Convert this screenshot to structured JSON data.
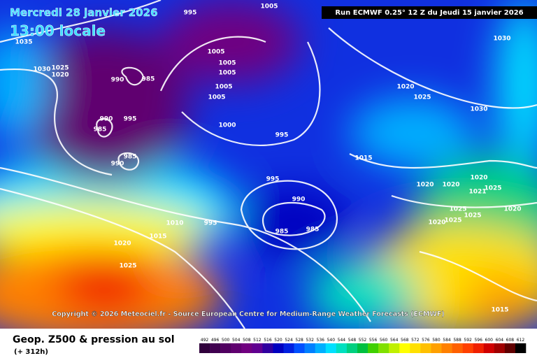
{
  "header": {
    "date": "Mercredi 28 janvier 2026",
    "time": "13:00 locale",
    "run": "Run ECMWF 0.25° 12 Z du Jeudi 15 janvier 2026"
  },
  "copyright": "Copyright © 2026 Meteociel.fr - Source European Centre for Medium-Range Weather Forecasts (ECMWF)",
  "legend": {
    "title": "Geop. Z500 & pression au sol",
    "subtitle": "(+ 312h)",
    "ticks": [
      492,
      496,
      500,
      504,
      508,
      512,
      516,
      520,
      524,
      528,
      532,
      536,
      540,
      544,
      548,
      552,
      556,
      560,
      564,
      568,
      572,
      576,
      580,
      584,
      588,
      592,
      596,
      600,
      604,
      608,
      612
    ],
    "colors": [
      "#30003c",
      "#400050",
      "#500060",
      "#600070",
      "#700080",
      "#600090",
      "#3000a0",
      "#0000c0",
      "#0020e0",
      "#0050ff",
      "#0080ff",
      "#00b0ff",
      "#00e0ff",
      "#00e0c0",
      "#00d080",
      "#00c040",
      "#40d000",
      "#80e000",
      "#c0f000",
      "#ffff00",
      "#ffe000",
      "#ffc000",
      "#ffa000",
      "#ff8000",
      "#ff6000",
      "#ff4000",
      "#f02000",
      "#d00000",
      "#a00000",
      "#600000",
      "#000000"
    ]
  },
  "isobar_labels": [
    "995",
    "1005",
    "1035",
    "1030",
    "1025",
    "1020",
    "990",
    "985",
    "1005",
    "1005",
    "1005",
    "1005",
    "1005",
    "990",
    "995",
    "985",
    "985",
    "990",
    "1000",
    "995",
    "995",
    "990",
    "985",
    "985",
    "995",
    "1010",
    "1015",
    "1020",
    "1025",
    "1020",
    "1025",
    "1030",
    "1030",
    "1015",
    "1020",
    "1020",
    "1020",
    "1025",
    "1025",
    "1021",
    "1020",
    "1020",
    "1025",
    "1025",
    "1015"
  ]
}
